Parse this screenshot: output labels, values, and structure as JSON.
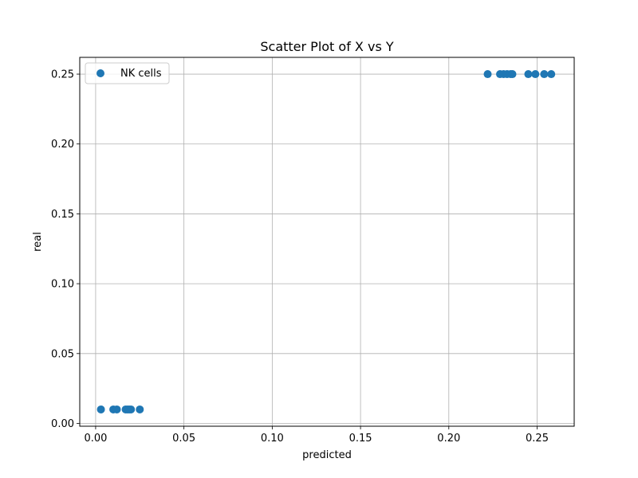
{
  "chart_data": {
    "type": "scatter",
    "title": "Scatter Plot of X vs Y",
    "xlabel": "predicted",
    "ylabel": "real",
    "xlim": [
      -0.009,
      0.271
    ],
    "ylim": [
      -0.002,
      0.262
    ],
    "xticks": [
      0.0,
      0.05,
      0.1,
      0.15,
      0.2,
      0.25
    ],
    "xtick_labels": [
      "0.00",
      "0.05",
      "0.10",
      "0.15",
      "0.20",
      "0.25"
    ],
    "yticks": [
      0.0,
      0.05,
      0.1,
      0.15,
      0.2,
      0.25
    ],
    "ytick_labels": [
      "0.00",
      "0.05",
      "0.10",
      "0.15",
      "0.20",
      "0.25"
    ],
    "grid": true,
    "legend_position": "top-left",
    "series": [
      {
        "name": "NK cells",
        "color": "#1f77b4",
        "points": [
          {
            "x": 0.003,
            "y": 0.01
          },
          {
            "x": 0.01,
            "y": 0.01
          },
          {
            "x": 0.012,
            "y": 0.01
          },
          {
            "x": 0.017,
            "y": 0.01
          },
          {
            "x": 0.018,
            "y": 0.01
          },
          {
            "x": 0.019,
            "y": 0.01
          },
          {
            "x": 0.02,
            "y": 0.01
          },
          {
            "x": 0.025,
            "y": 0.01
          },
          {
            "x": 0.222,
            "y": 0.25
          },
          {
            "x": 0.229,
            "y": 0.25
          },
          {
            "x": 0.231,
            "y": 0.25
          },
          {
            "x": 0.233,
            "y": 0.25
          },
          {
            "x": 0.235,
            "y": 0.25
          },
          {
            "x": 0.236,
            "y": 0.25
          },
          {
            "x": 0.245,
            "y": 0.25
          },
          {
            "x": 0.249,
            "y": 0.25
          },
          {
            "x": 0.254,
            "y": 0.25
          },
          {
            "x": 0.258,
            "y": 0.25
          }
        ]
      }
    ]
  }
}
